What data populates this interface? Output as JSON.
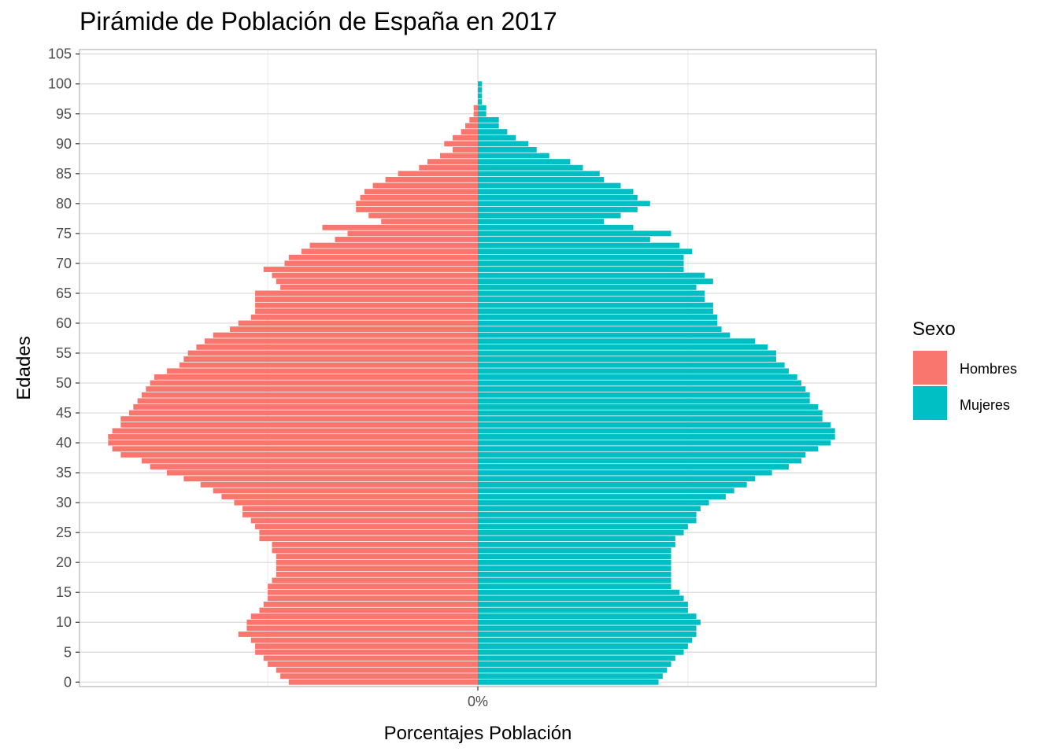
{
  "chart_data": {
    "type": "bar",
    "orientation": "horizontal",
    "title": "Pirámide de Población de España en 2017",
    "xlabel": "Porcentajes Población",
    "ylabel": "Edades",
    "x_tick_labels": [
      "0%"
    ],
    "y_ticks": [
      0,
      5,
      10,
      15,
      20,
      25,
      30,
      35,
      40,
      45,
      50,
      55,
      60,
      65,
      70,
      75,
      80,
      85,
      90,
      95,
      100,
      105
    ],
    "ages": [
      0,
      1,
      2,
      3,
      4,
      5,
      6,
      7,
      8,
      9,
      10,
      11,
      12,
      13,
      14,
      15,
      16,
      17,
      18,
      19,
      20,
      21,
      22,
      23,
      24,
      25,
      26,
      27,
      28,
      29,
      30,
      31,
      32,
      33,
      34,
      35,
      36,
      37,
      38,
      39,
      40,
      41,
      42,
      43,
      44,
      45,
      46,
      47,
      48,
      49,
      50,
      51,
      52,
      53,
      54,
      55,
      56,
      57,
      58,
      59,
      60,
      61,
      62,
      63,
      64,
      65,
      66,
      67,
      68,
      69,
      70,
      71,
      72,
      73,
      74,
      75,
      76,
      77,
      78,
      79,
      80,
      81,
      82,
      83,
      84,
      85,
      86,
      87,
      88,
      89,
      90,
      91,
      92,
      93,
      94,
      95,
      96,
      97,
      98,
      99,
      100
    ],
    "xlim": [
      -0.948,
      0.948
    ],
    "legend": {
      "title": "Sexo",
      "position": "right"
    },
    "grid": true,
    "colors": {
      "Hombres": "#F8766D",
      "Mujeres": "#00BFC4"
    },
    "series": [
      {
        "name": "Hombres",
        "values": [
          -0.45,
          -0.47,
          -0.48,
          -0.5,
          -0.51,
          -0.53,
          -0.53,
          -0.54,
          -0.57,
          -0.55,
          -0.55,
          -0.54,
          -0.52,
          -0.51,
          -0.5,
          -0.5,
          -0.5,
          -0.49,
          -0.48,
          -0.48,
          -0.48,
          -0.48,
          -0.49,
          -0.49,
          -0.52,
          -0.52,
          -0.53,
          -0.54,
          -0.56,
          -0.56,
          -0.58,
          -0.61,
          -0.63,
          -0.66,
          -0.7,
          -0.74,
          -0.78,
          -0.8,
          -0.85,
          -0.87,
          -0.88,
          -0.88,
          -0.87,
          -0.85,
          -0.85,
          -0.83,
          -0.82,
          -0.81,
          -0.8,
          -0.79,
          -0.78,
          -0.77,
          -0.74,
          -0.71,
          -0.7,
          -0.69,
          -0.67,
          -0.65,
          -0.63,
          -0.59,
          -0.57,
          -0.54,
          -0.53,
          -0.53,
          -0.53,
          -0.53,
          -0.47,
          -0.48,
          -0.49,
          -0.51,
          -0.46,
          -0.45,
          -0.42,
          -0.4,
          -0.34,
          -0.31,
          -0.37,
          -0.23,
          -0.26,
          -0.29,
          -0.29,
          -0.28,
          -0.27,
          -0.25,
          -0.22,
          -0.19,
          -0.14,
          -0.12,
          -0.09,
          -0.06,
          -0.08,
          -0.06,
          -0.04,
          -0.03,
          -0.02,
          -0.01,
          -0.01,
          -0.0,
          0,
          0,
          0
        ]
      },
      {
        "name": "Mujeres",
        "values": [
          0.43,
          0.44,
          0.45,
          0.46,
          0.47,
          0.49,
          0.5,
          0.51,
          0.52,
          0.52,
          0.53,
          0.52,
          0.5,
          0.5,
          0.49,
          0.48,
          0.46,
          0.46,
          0.46,
          0.46,
          0.46,
          0.46,
          0.46,
          0.47,
          0.47,
          0.49,
          0.5,
          0.52,
          0.52,
          0.53,
          0.55,
          0.59,
          0.61,
          0.64,
          0.66,
          0.7,
          0.74,
          0.77,
          0.78,
          0.81,
          0.84,
          0.85,
          0.85,
          0.84,
          0.82,
          0.82,
          0.81,
          0.79,
          0.79,
          0.78,
          0.77,
          0.76,
          0.74,
          0.73,
          0.71,
          0.71,
          0.69,
          0.66,
          0.6,
          0.58,
          0.57,
          0.57,
          0.56,
          0.56,
          0.54,
          0.54,
          0.52,
          0.56,
          0.54,
          0.49,
          0.49,
          0.49,
          0.51,
          0.48,
          0.41,
          0.46,
          0.37,
          0.3,
          0.34,
          0.38,
          0.41,
          0.38,
          0.37,
          0.34,
          0.3,
          0.29,
          0.25,
          0.22,
          0.17,
          0.14,
          0.12,
          0.09,
          0.07,
          0.05,
          0.05,
          0.02,
          0.02,
          0.01,
          0.01,
          0.01,
          0.01
        ]
      }
    ]
  }
}
